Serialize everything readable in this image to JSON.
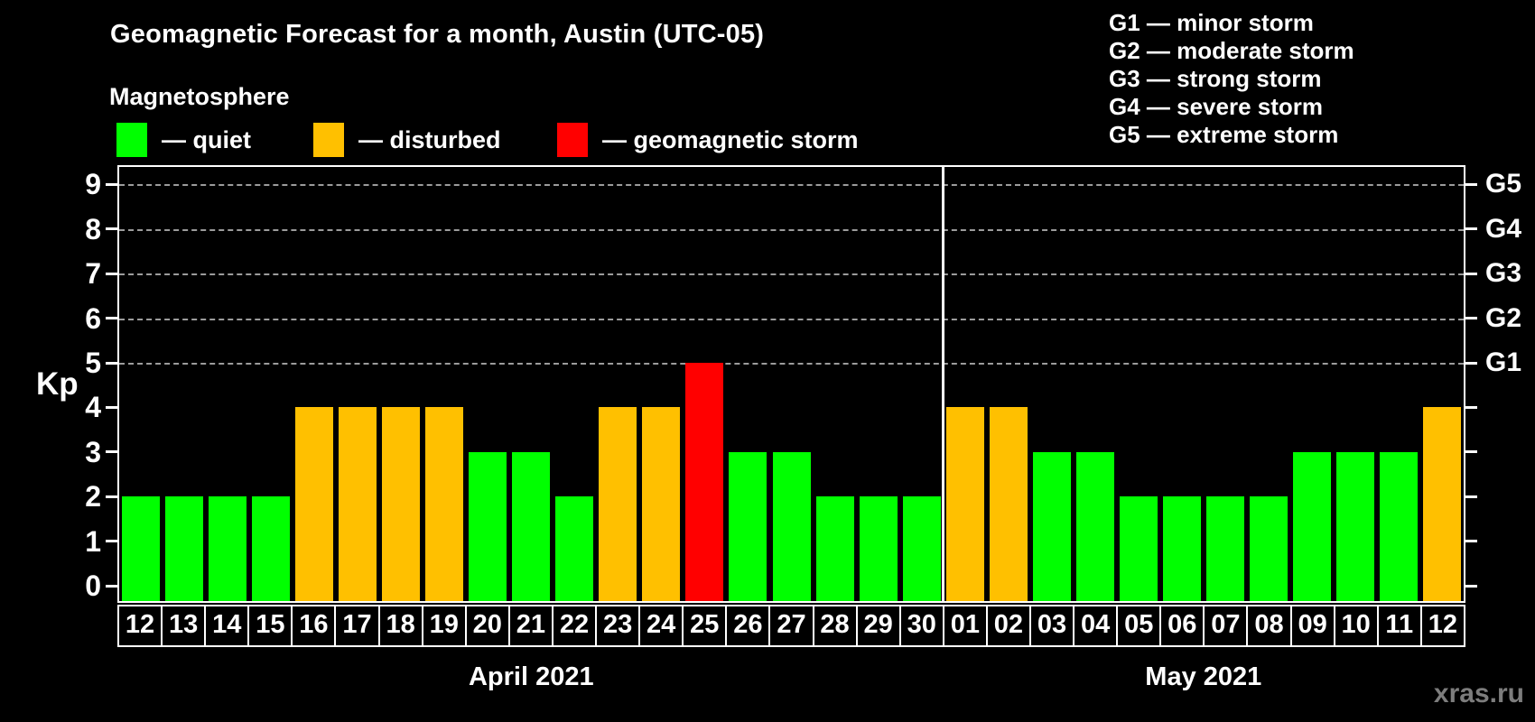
{
  "title": "Geomagnetic Forecast for a month, Austin (UTC-05)",
  "subtitle": "Magnetosphere",
  "watermark": "xras.ru",
  "colors": {
    "quiet": "#00ff00",
    "disturbed": "#ffc000",
    "storm": "#ff0000",
    "background": "#000000",
    "text": "#ffffff",
    "grid": "#9c9c9c",
    "watermark": "#7d7d7d"
  },
  "legend": {
    "items": [
      {
        "status": "quiet",
        "label": "— quiet"
      },
      {
        "status": "disturbed",
        "label": "— disturbed"
      },
      {
        "status": "storm",
        "label": "— geomagnetic storm"
      }
    ]
  },
  "g_legend": [
    "G1 — minor storm",
    "G2 — moderate storm",
    "G3 — strong storm",
    "G4 — severe storm",
    "G5 — extreme storm"
  ],
  "chart_data": {
    "type": "bar",
    "title": "Geomagnetic Forecast for a month, Austin (UTC-05)",
    "ylabel": "Kp",
    "ylim": [
      0,
      9
    ],
    "yticks": [
      0,
      1,
      2,
      3,
      4,
      5,
      6,
      7,
      8,
      9
    ],
    "grid_levels": [
      5,
      6,
      7,
      8,
      9
    ],
    "grid_on": true,
    "right_axis_labels": [
      {
        "kp": 5,
        "label": "G1"
      },
      {
        "kp": 6,
        "label": "G2"
      },
      {
        "kp": 7,
        "label": "G3"
      },
      {
        "kp": 8,
        "label": "G4"
      },
      {
        "kp": 9,
        "label": "G5"
      }
    ],
    "months": [
      {
        "label": "April 2021",
        "days": 19
      },
      {
        "label": "May 2021",
        "days": 12
      }
    ],
    "bars": [
      {
        "day": "12",
        "kp": 2,
        "status": "quiet"
      },
      {
        "day": "13",
        "kp": 2,
        "status": "quiet"
      },
      {
        "day": "14",
        "kp": 2,
        "status": "quiet"
      },
      {
        "day": "15",
        "kp": 2,
        "status": "quiet"
      },
      {
        "day": "16",
        "kp": 4,
        "status": "disturbed"
      },
      {
        "day": "17",
        "kp": 4,
        "status": "disturbed"
      },
      {
        "day": "18",
        "kp": 4,
        "status": "disturbed"
      },
      {
        "day": "19",
        "kp": 4,
        "status": "disturbed"
      },
      {
        "day": "20",
        "kp": 3,
        "status": "quiet"
      },
      {
        "day": "21",
        "kp": 3,
        "status": "quiet"
      },
      {
        "day": "22",
        "kp": 2,
        "status": "quiet"
      },
      {
        "day": "23",
        "kp": 4,
        "status": "disturbed"
      },
      {
        "day": "24",
        "kp": 4,
        "status": "disturbed"
      },
      {
        "day": "25",
        "kp": 5,
        "status": "storm"
      },
      {
        "day": "26",
        "kp": 3,
        "status": "quiet"
      },
      {
        "day": "27",
        "kp": 3,
        "status": "quiet"
      },
      {
        "day": "28",
        "kp": 2,
        "status": "quiet"
      },
      {
        "day": "29",
        "kp": 2,
        "status": "quiet"
      },
      {
        "day": "30",
        "kp": 2,
        "status": "quiet"
      },
      {
        "day": "01",
        "kp": 4,
        "status": "disturbed"
      },
      {
        "day": "02",
        "kp": 4,
        "status": "disturbed"
      },
      {
        "day": "03",
        "kp": 3,
        "status": "quiet"
      },
      {
        "day": "04",
        "kp": 3,
        "status": "quiet"
      },
      {
        "day": "05",
        "kp": 2,
        "status": "quiet"
      },
      {
        "day": "06",
        "kp": 2,
        "status": "quiet"
      },
      {
        "day": "07",
        "kp": 2,
        "status": "quiet"
      },
      {
        "day": "08",
        "kp": 2,
        "status": "quiet"
      },
      {
        "day": "09",
        "kp": 3,
        "status": "quiet"
      },
      {
        "day": "10",
        "kp": 3,
        "status": "quiet"
      },
      {
        "day": "11",
        "kp": 3,
        "status": "quiet"
      },
      {
        "day": "12",
        "kp": 4,
        "status": "disturbed"
      }
    ]
  }
}
